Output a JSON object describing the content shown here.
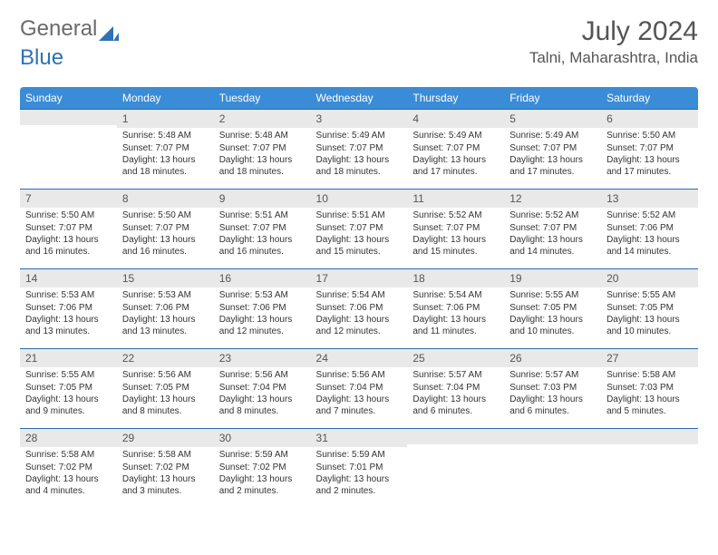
{
  "logo": {
    "text1": "General",
    "text2": "Blue"
  },
  "title": "July 2024",
  "location": "Talni, Maharashtra, India",
  "colors": {
    "header_bg": "#3b8cd6",
    "header_text": "#ffffff",
    "daynum_bg": "#e9e9e9",
    "row_divider": "#2b6ca8",
    "logo_gray": "#6a6a6a",
    "logo_blue": "#2e72b5"
  },
  "weekdays": [
    "Sunday",
    "Monday",
    "Tuesday",
    "Wednesday",
    "Thursday",
    "Friday",
    "Saturday"
  ],
  "weeks": [
    [
      {
        "day": "",
        "sunrise": "",
        "sunset": "",
        "daylight": ""
      },
      {
        "day": "1",
        "sunrise": "Sunrise: 5:48 AM",
        "sunset": "Sunset: 7:07 PM",
        "daylight": "Daylight: 13 hours and 18 minutes."
      },
      {
        "day": "2",
        "sunrise": "Sunrise: 5:48 AM",
        "sunset": "Sunset: 7:07 PM",
        "daylight": "Daylight: 13 hours and 18 minutes."
      },
      {
        "day": "3",
        "sunrise": "Sunrise: 5:49 AM",
        "sunset": "Sunset: 7:07 PM",
        "daylight": "Daylight: 13 hours and 18 minutes."
      },
      {
        "day": "4",
        "sunrise": "Sunrise: 5:49 AM",
        "sunset": "Sunset: 7:07 PM",
        "daylight": "Daylight: 13 hours and 17 minutes."
      },
      {
        "day": "5",
        "sunrise": "Sunrise: 5:49 AM",
        "sunset": "Sunset: 7:07 PM",
        "daylight": "Daylight: 13 hours and 17 minutes."
      },
      {
        "day": "6",
        "sunrise": "Sunrise: 5:50 AM",
        "sunset": "Sunset: 7:07 PM",
        "daylight": "Daylight: 13 hours and 17 minutes."
      }
    ],
    [
      {
        "day": "7",
        "sunrise": "Sunrise: 5:50 AM",
        "sunset": "Sunset: 7:07 PM",
        "daylight": "Daylight: 13 hours and 16 minutes."
      },
      {
        "day": "8",
        "sunrise": "Sunrise: 5:50 AM",
        "sunset": "Sunset: 7:07 PM",
        "daylight": "Daylight: 13 hours and 16 minutes."
      },
      {
        "day": "9",
        "sunrise": "Sunrise: 5:51 AM",
        "sunset": "Sunset: 7:07 PM",
        "daylight": "Daylight: 13 hours and 16 minutes."
      },
      {
        "day": "10",
        "sunrise": "Sunrise: 5:51 AM",
        "sunset": "Sunset: 7:07 PM",
        "daylight": "Daylight: 13 hours and 15 minutes."
      },
      {
        "day": "11",
        "sunrise": "Sunrise: 5:52 AM",
        "sunset": "Sunset: 7:07 PM",
        "daylight": "Daylight: 13 hours and 15 minutes."
      },
      {
        "day": "12",
        "sunrise": "Sunrise: 5:52 AM",
        "sunset": "Sunset: 7:07 PM",
        "daylight": "Daylight: 13 hours and 14 minutes."
      },
      {
        "day": "13",
        "sunrise": "Sunrise: 5:52 AM",
        "sunset": "Sunset: 7:06 PM",
        "daylight": "Daylight: 13 hours and 14 minutes."
      }
    ],
    [
      {
        "day": "14",
        "sunrise": "Sunrise: 5:53 AM",
        "sunset": "Sunset: 7:06 PM",
        "daylight": "Daylight: 13 hours and 13 minutes."
      },
      {
        "day": "15",
        "sunrise": "Sunrise: 5:53 AM",
        "sunset": "Sunset: 7:06 PM",
        "daylight": "Daylight: 13 hours and 13 minutes."
      },
      {
        "day": "16",
        "sunrise": "Sunrise: 5:53 AM",
        "sunset": "Sunset: 7:06 PM",
        "daylight": "Daylight: 13 hours and 12 minutes."
      },
      {
        "day": "17",
        "sunrise": "Sunrise: 5:54 AM",
        "sunset": "Sunset: 7:06 PM",
        "daylight": "Daylight: 13 hours and 12 minutes."
      },
      {
        "day": "18",
        "sunrise": "Sunrise: 5:54 AM",
        "sunset": "Sunset: 7:06 PM",
        "daylight": "Daylight: 13 hours and 11 minutes."
      },
      {
        "day": "19",
        "sunrise": "Sunrise: 5:55 AM",
        "sunset": "Sunset: 7:05 PM",
        "daylight": "Daylight: 13 hours and 10 minutes."
      },
      {
        "day": "20",
        "sunrise": "Sunrise: 5:55 AM",
        "sunset": "Sunset: 7:05 PM",
        "daylight": "Daylight: 13 hours and 10 minutes."
      }
    ],
    [
      {
        "day": "21",
        "sunrise": "Sunrise: 5:55 AM",
        "sunset": "Sunset: 7:05 PM",
        "daylight": "Daylight: 13 hours and 9 minutes."
      },
      {
        "day": "22",
        "sunrise": "Sunrise: 5:56 AM",
        "sunset": "Sunset: 7:05 PM",
        "daylight": "Daylight: 13 hours and 8 minutes."
      },
      {
        "day": "23",
        "sunrise": "Sunrise: 5:56 AM",
        "sunset": "Sunset: 7:04 PM",
        "daylight": "Daylight: 13 hours and 8 minutes."
      },
      {
        "day": "24",
        "sunrise": "Sunrise: 5:56 AM",
        "sunset": "Sunset: 7:04 PM",
        "daylight": "Daylight: 13 hours and 7 minutes."
      },
      {
        "day": "25",
        "sunrise": "Sunrise: 5:57 AM",
        "sunset": "Sunset: 7:04 PM",
        "daylight": "Daylight: 13 hours and 6 minutes."
      },
      {
        "day": "26",
        "sunrise": "Sunrise: 5:57 AM",
        "sunset": "Sunset: 7:03 PM",
        "daylight": "Daylight: 13 hours and 6 minutes."
      },
      {
        "day": "27",
        "sunrise": "Sunrise: 5:58 AM",
        "sunset": "Sunset: 7:03 PM",
        "daylight": "Daylight: 13 hours and 5 minutes."
      }
    ],
    [
      {
        "day": "28",
        "sunrise": "Sunrise: 5:58 AM",
        "sunset": "Sunset: 7:02 PM",
        "daylight": "Daylight: 13 hours and 4 minutes."
      },
      {
        "day": "29",
        "sunrise": "Sunrise: 5:58 AM",
        "sunset": "Sunset: 7:02 PM",
        "daylight": "Daylight: 13 hours and 3 minutes."
      },
      {
        "day": "30",
        "sunrise": "Sunrise: 5:59 AM",
        "sunset": "Sunset: 7:02 PM",
        "daylight": "Daylight: 13 hours and 2 minutes."
      },
      {
        "day": "31",
        "sunrise": "Sunrise: 5:59 AM",
        "sunset": "Sunset: 7:01 PM",
        "daylight": "Daylight: 13 hours and 2 minutes."
      },
      {
        "day": "",
        "sunrise": "",
        "sunset": "",
        "daylight": ""
      },
      {
        "day": "",
        "sunrise": "",
        "sunset": "",
        "daylight": ""
      },
      {
        "day": "",
        "sunrise": "",
        "sunset": "",
        "daylight": ""
      }
    ]
  ]
}
